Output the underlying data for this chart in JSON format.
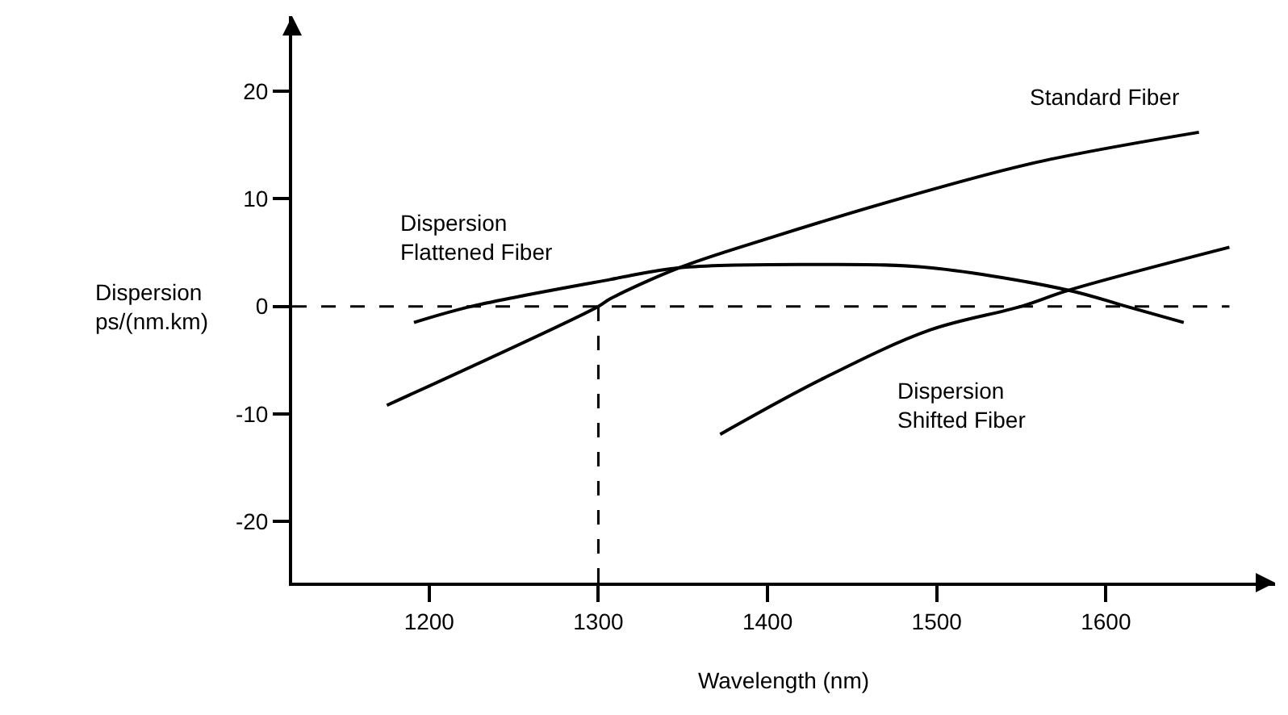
{
  "chart_data": {
    "type": "line",
    "xlabel": "Wavelength (nm)",
    "ylabel": "Dispersion\nps/(nm.km)",
    "xlim": [
      1119,
      1700
    ],
    "ylim": [
      -25.7,
      27
    ],
    "xticks": [
      1200,
      1300,
      1400,
      1500,
      1600
    ],
    "yticks": [
      -20,
      -10,
      0,
      10,
      20
    ],
    "legend": false,
    "marker": "none",
    "line_style": "solid",
    "series": [
      {
        "name": "Standard Fiber",
        "color": "#000000",
        "x": [
          1175,
          1300,
          1307,
          1348,
          1402,
          1480,
          1559,
          1655
        ],
        "values": [
          -9.2,
          0,
          0.7,
          3.6,
          6.4,
          10.1,
          13.4,
          16.2
        ]
      },
      {
        "name": "Dispersion\nFlattened Fiber",
        "color": "#000000",
        "x": [
          1191,
          1225,
          1307,
          1348,
          1433,
          1496,
          1578,
          1612,
          1646
        ],
        "values": [
          -1.5,
          0,
          2.5,
          3.6,
          3.9,
          3.6,
          1.5,
          0,
          -1.5
        ]
      },
      {
        "name": "Dispersion\nShifted Fiber",
        "color": "#000000",
        "x": [
          1372,
          1433,
          1496,
          1550,
          1578,
          1673
        ],
        "values": [
          -11.9,
          -6.7,
          -2.2,
          0,
          1.5,
          5.5
        ]
      }
    ],
    "ref_lines": [
      {
        "axis": "y",
        "value": 0,
        "line_style": "dashed",
        "color": "#000000"
      },
      {
        "axis": "x",
        "value": 1300,
        "line_style": "dashed",
        "color": "#000000"
      }
    ]
  }
}
